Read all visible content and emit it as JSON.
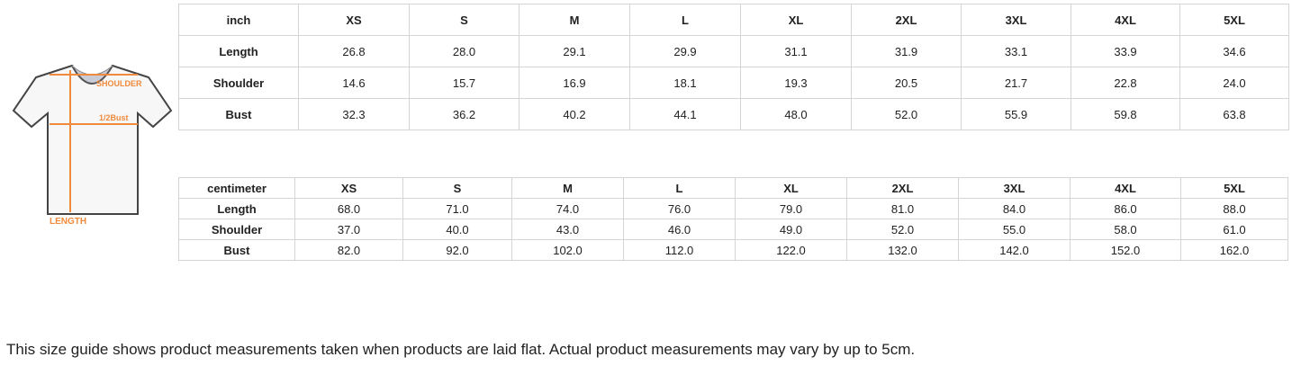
{
  "illustration": {
    "labels": {
      "shoulder": "SHOULDER",
      "bust": "1/2Bust",
      "length": "LENGTH"
    },
    "accent_color": "#f08a3c"
  },
  "inch_table": {
    "header": [
      "inch",
      "XS",
      "S",
      "M",
      "L",
      "XL",
      "2XL",
      "3XL",
      "4XL",
      "5XL"
    ],
    "rows": [
      [
        "Length",
        "26.8",
        "28.0",
        "29.1",
        "29.9",
        "31.1",
        "31.9",
        "33.1",
        "33.9",
        "34.6"
      ],
      [
        "Shoulder",
        "14.6",
        "15.7",
        "16.9",
        "18.1",
        "19.3",
        "20.5",
        "21.7",
        "22.8",
        "24.0"
      ],
      [
        "Bust",
        "32.3",
        "36.2",
        "40.2",
        "44.1",
        "48.0",
        "52.0",
        "55.9",
        "59.8",
        "63.8"
      ]
    ]
  },
  "cm_table": {
    "header": [
      "centimeter",
      "XS",
      "S",
      "M",
      "L",
      "XL",
      "2XL",
      "3XL",
      "4XL",
      "5XL"
    ],
    "rows": [
      [
        "Length",
        "68.0",
        "71.0",
        "74.0",
        "76.0",
        "79.0",
        "81.0",
        "84.0",
        "86.0",
        "88.0"
      ],
      [
        "Shoulder",
        "37.0",
        "40.0",
        "43.0",
        "46.0",
        "49.0",
        "52.0",
        "55.0",
        "58.0",
        "61.0"
      ],
      [
        "Bust",
        "82.0",
        "92.0",
        "102.0",
        "112.0",
        "122.0",
        "132.0",
        "142.0",
        "152.0",
        "162.0"
      ]
    ]
  },
  "note": "This size guide shows product measurements taken when products are laid flat. Actual product measurements may vary by up to 5cm."
}
